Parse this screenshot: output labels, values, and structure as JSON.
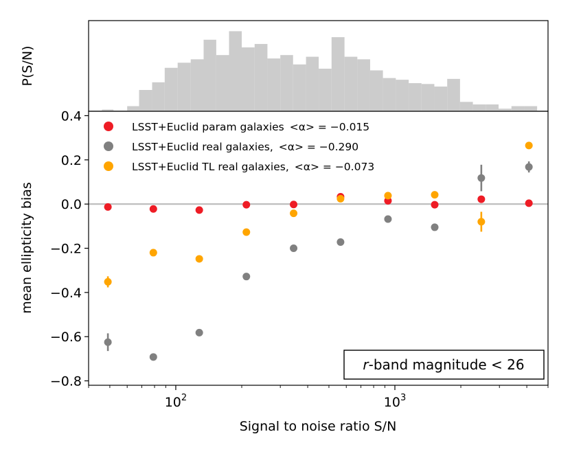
{
  "chart_data": [
    {
      "type": "histogram",
      "ylabel": "P(S/N)",
      "xscale": "log",
      "xlim": [
        40,
        5000
      ],
      "bar_color": "#cccccc",
      "bins": [
        {
          "x0": 46,
          "x1": 52,
          "h": 0.02
        },
        {
          "x0": 52,
          "x1": 60,
          "h": 0.0
        },
        {
          "x0": 60,
          "x1": 68,
          "h": 0.06
        },
        {
          "x0": 68,
          "x1": 78,
          "h": 0.25
        },
        {
          "x0": 78,
          "x1": 89,
          "h": 0.34
        },
        {
          "x0": 89,
          "x1": 102,
          "h": 0.51
        },
        {
          "x0": 102,
          "x1": 117,
          "h": 0.57
        },
        {
          "x0": 117,
          "x1": 134,
          "h": 0.61
        },
        {
          "x0": 134,
          "x1": 153,
          "h": 0.84
        },
        {
          "x0": 153,
          "x1": 175,
          "h": 0.66
        },
        {
          "x0": 175,
          "x1": 200,
          "h": 0.94
        },
        {
          "x0": 200,
          "x1": 229,
          "h": 0.75
        },
        {
          "x0": 229,
          "x1": 262,
          "h": 0.79
        },
        {
          "x0": 262,
          "x1": 300,
          "h": 0.62
        },
        {
          "x0": 300,
          "x1": 343,
          "h": 0.66
        },
        {
          "x0": 343,
          "x1": 393,
          "h": 0.55
        },
        {
          "x0": 393,
          "x1": 449,
          "h": 0.64
        },
        {
          "x0": 449,
          "x1": 514,
          "h": 0.5
        },
        {
          "x0": 514,
          "x1": 589,
          "h": 0.87
        },
        {
          "x0": 589,
          "x1": 674,
          "h": 0.64
        },
        {
          "x0": 674,
          "x1": 771,
          "h": 0.61
        },
        {
          "x0": 771,
          "x1": 882,
          "h": 0.48
        },
        {
          "x0": 882,
          "x1": 1010,
          "h": 0.39
        },
        {
          "x0": 1010,
          "x1": 1156,
          "h": 0.37
        },
        {
          "x0": 1156,
          "x1": 1323,
          "h": 0.33
        },
        {
          "x0": 1323,
          "x1": 1514,
          "h": 0.32
        },
        {
          "x0": 1514,
          "x1": 1733,
          "h": 0.29
        },
        {
          "x0": 1733,
          "x1": 1983,
          "h": 0.38
        },
        {
          "x0": 1983,
          "x1": 2270,
          "h": 0.11
        },
        {
          "x0": 2270,
          "x1": 2598,
          "h": 0.08
        },
        {
          "x0": 2598,
          "x1": 2974,
          "h": 0.08
        },
        {
          "x0": 2974,
          "x1": 3404,
          "h": 0.03
        },
        {
          "x0": 3404,
          "x1": 3896,
          "h": 0.06
        },
        {
          "x0": 3896,
          "x1": 4459,
          "h": 0.06
        }
      ]
    },
    {
      "type": "scatter",
      "xlabel": "Signal to noise ratio S/N",
      "ylabel": "mean ellipticity bias",
      "xscale": "log",
      "xlim": [
        40,
        5000
      ],
      "ylim": [
        -0.82,
        0.42
      ],
      "x_ticks": [
        {
          "value": 100,
          "base": "10",
          "exp": "2"
        },
        {
          "value": 1000,
          "base": "10",
          "exp": "3"
        }
      ],
      "y_ticks": [
        {
          "value": 0.4,
          "label": "0.4"
        },
        {
          "value": 0.2,
          "label": "0.2"
        },
        {
          "value": 0.0,
          "label": "0.0"
        },
        {
          "value": -0.2,
          "label": "−0.2"
        },
        {
          "value": -0.4,
          "label": "−0.4"
        },
        {
          "value": -0.6,
          "label": "−0.6"
        },
        {
          "value": -0.8,
          "label": "−0.8"
        }
      ],
      "reference_line": {
        "y": 0.0,
        "color": "#bfbfbf"
      },
      "series": [
        {
          "name": "LSST+Euclid param galaxies",
          "legend_stat": "<α> = −0.015",
          "color": "#ee1c25",
          "points": [
            {
              "x": 49,
              "y": -0.013,
              "err": 0
            },
            {
              "x": 79,
              "y": -0.022,
              "err": 0
            },
            {
              "x": 128,
              "y": -0.027,
              "err": 0
            },
            {
              "x": 210,
              "y": -0.003,
              "err": 0
            },
            {
              "x": 345,
              "y": -0.002,
              "err": 0
            },
            {
              "x": 565,
              "y": 0.033,
              "err": 0
            },
            {
              "x": 930,
              "y": 0.015,
              "err": 0
            },
            {
              "x": 1520,
              "y": -0.003,
              "err": 0
            },
            {
              "x": 2480,
              "y": 0.022,
              "err": 0
            },
            {
              "x": 4090,
              "y": 0.004,
              "err": 0
            }
          ]
        },
        {
          "name": "LSST+Euclid real galaxies,",
          "legend_stat": "<α> = −0.290",
          "color": "#808080",
          "points": [
            {
              "x": 49,
              "y": -0.625,
              "err": 0.04
            },
            {
              "x": 79,
              "y": -0.692,
              "err": 0
            },
            {
              "x": 128,
              "y": -0.582,
              "err": 0
            },
            {
              "x": 210,
              "y": -0.328,
              "err": 0
            },
            {
              "x": 345,
              "y": -0.2,
              "err": 0
            },
            {
              "x": 565,
              "y": -0.172,
              "err": 0
            },
            {
              "x": 930,
              "y": -0.068,
              "err": 0
            },
            {
              "x": 1520,
              "y": -0.105,
              "err": 0
            },
            {
              "x": 2480,
              "y": 0.118,
              "err": 0.06
            },
            {
              "x": 4090,
              "y": 0.168,
              "err": 0.025
            }
          ]
        },
        {
          "name": "LSST+Euclid TL real galaxies,",
          "legend_stat": "<α> = −0.073",
          "color": "#ffa500",
          "points": [
            {
              "x": 49,
              "y": -0.352,
              "err": 0.025
            },
            {
              "x": 79,
              "y": -0.22,
              "err": 0
            },
            {
              "x": 128,
              "y": -0.248,
              "err": 0
            },
            {
              "x": 210,
              "y": -0.127,
              "err": 0
            },
            {
              "x": 345,
              "y": -0.042,
              "err": 0
            },
            {
              "x": 565,
              "y": 0.024,
              "err": 0
            },
            {
              "x": 930,
              "y": 0.038,
              "err": 0
            },
            {
              "x": 1520,
              "y": 0.042,
              "err": 0
            },
            {
              "x": 2480,
              "y": -0.08,
              "err": 0.045
            },
            {
              "x": 4090,
              "y": 0.265,
              "err": 0
            }
          ]
        }
      ],
      "annotation": {
        "italic": "r",
        "text": "-band magnitude < 26",
        "placement": "bottom-right"
      },
      "legend_placement": "top-left"
    }
  ]
}
